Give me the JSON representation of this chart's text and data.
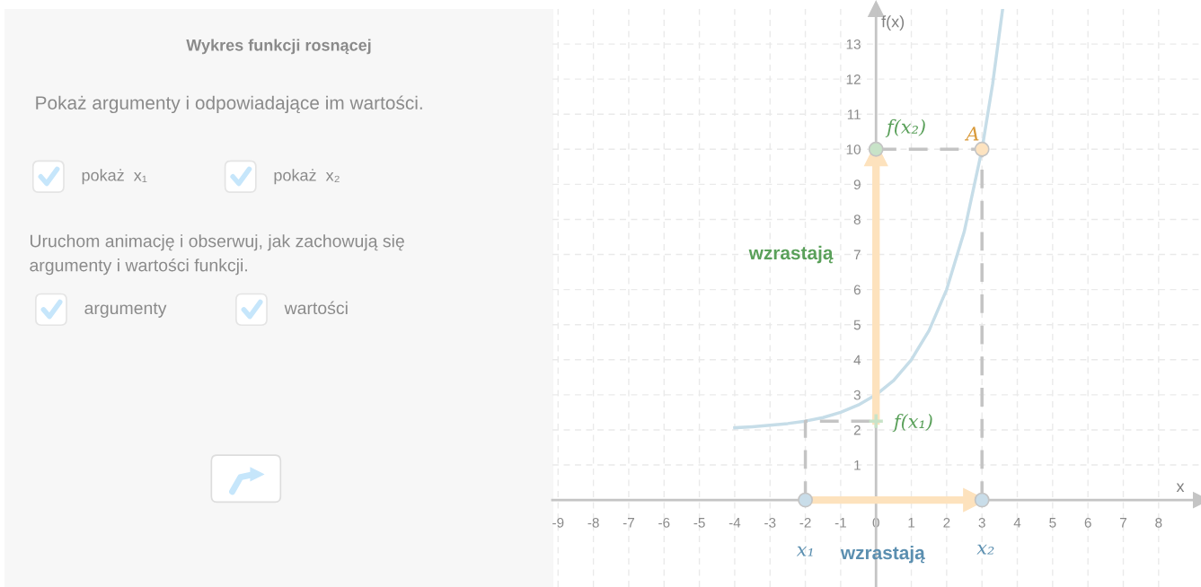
{
  "chart_data": [
    {
      "type": "other",
      "title": "Wykres funkcji rosnącej",
      "annotations": [
        "Pokaż argumenty i odpowiadające im wartości.",
        "pokaż  x₁",
        "pokaż  x₂",
        "Uruchom animację i obserwuj, jak zachowują się\nargumenty i wartości funkcji.",
        "argumenty",
        "wartości"
      ]
    },
    {
      "type": "line",
      "xlim": [
        -9.16,
        9.2
      ],
      "ylim": [
        -2.48,
        14.0
      ],
      "xticks": [
        -9,
        -8,
        -7,
        -6,
        -5,
        -4,
        -3,
        -2,
        -1,
        0,
        1,
        2,
        3,
        4,
        5,
        6,
        7,
        8
      ],
      "yticks": [
        1,
        2,
        3,
        4,
        5,
        6,
        7,
        8,
        9,
        10,
        11,
        12,
        13
      ],
      "grid": true,
      "series": [
        {
          "type": "line",
          "color": "#c6dde8",
          "x": [
            -4,
            -3.5,
            -3,
            -2.5,
            -2,
            -1.5,
            -1,
            -0.5,
            0,
            0.5,
            1,
            1.5,
            2,
            2.5,
            3,
            3.3,
            3.58
          ],
          "values": [
            2.06,
            2.09,
            2.13,
            2.18,
            2.25,
            2.35,
            2.5,
            2.71,
            3,
            3.41,
            4,
            4.83,
            6,
            7.66,
            10,
            11.85,
            13.96
          ]
        },
        {
          "type": "line",
          "color": "#c4c4c4",
          "line_style": "dashed",
          "x": [
            -2,
            -2,
            0
          ],
          "values": [
            0,
            2.25,
            2.25
          ]
        },
        {
          "type": "line",
          "color": "#c4c4c4",
          "line_style": "dashed",
          "x": [
            3,
            3,
            0
          ],
          "values": [
            0,
            10,
            10
          ]
        },
        {
          "type": "line",
          "color": "#fde2bd",
          "marker": "triangle",
          "x": [
            -2,
            2.8
          ],
          "values": [
            0,
            0
          ]
        },
        {
          "type": "line",
          "color": "#fde2bd",
          "marker": "triangle",
          "x": [
            0,
            0
          ],
          "values": [
            2.25,
            9.85
          ]
        },
        {
          "type": "scatter",
          "color": "#c9dde9",
          "marker": "circle",
          "x": [
            -2,
            3
          ],
          "values": [
            0,
            0
          ]
        },
        {
          "type": "scatter",
          "color": "#c8e3c8",
          "marker": "circle",
          "x": [
            0
          ],
          "values": [
            10
          ]
        },
        {
          "type": "scatter",
          "color": "#fde3c0",
          "marker": "circle",
          "x": [
            3
          ],
          "values": [
            10
          ]
        },
        {
          "type": "scatter",
          "color": "#c8e3c8",
          "marker": "cross",
          "x": [
            0
          ],
          "values": [
            2.25
          ]
        }
      ],
      "annotations": [
        "f(x)",
        "x",
        "f(x₂)",
        "A",
        "wzrastają",
        "f(x₁)",
        "x₁",
        "wzrastają",
        "x₂"
      ]
    }
  ]
}
